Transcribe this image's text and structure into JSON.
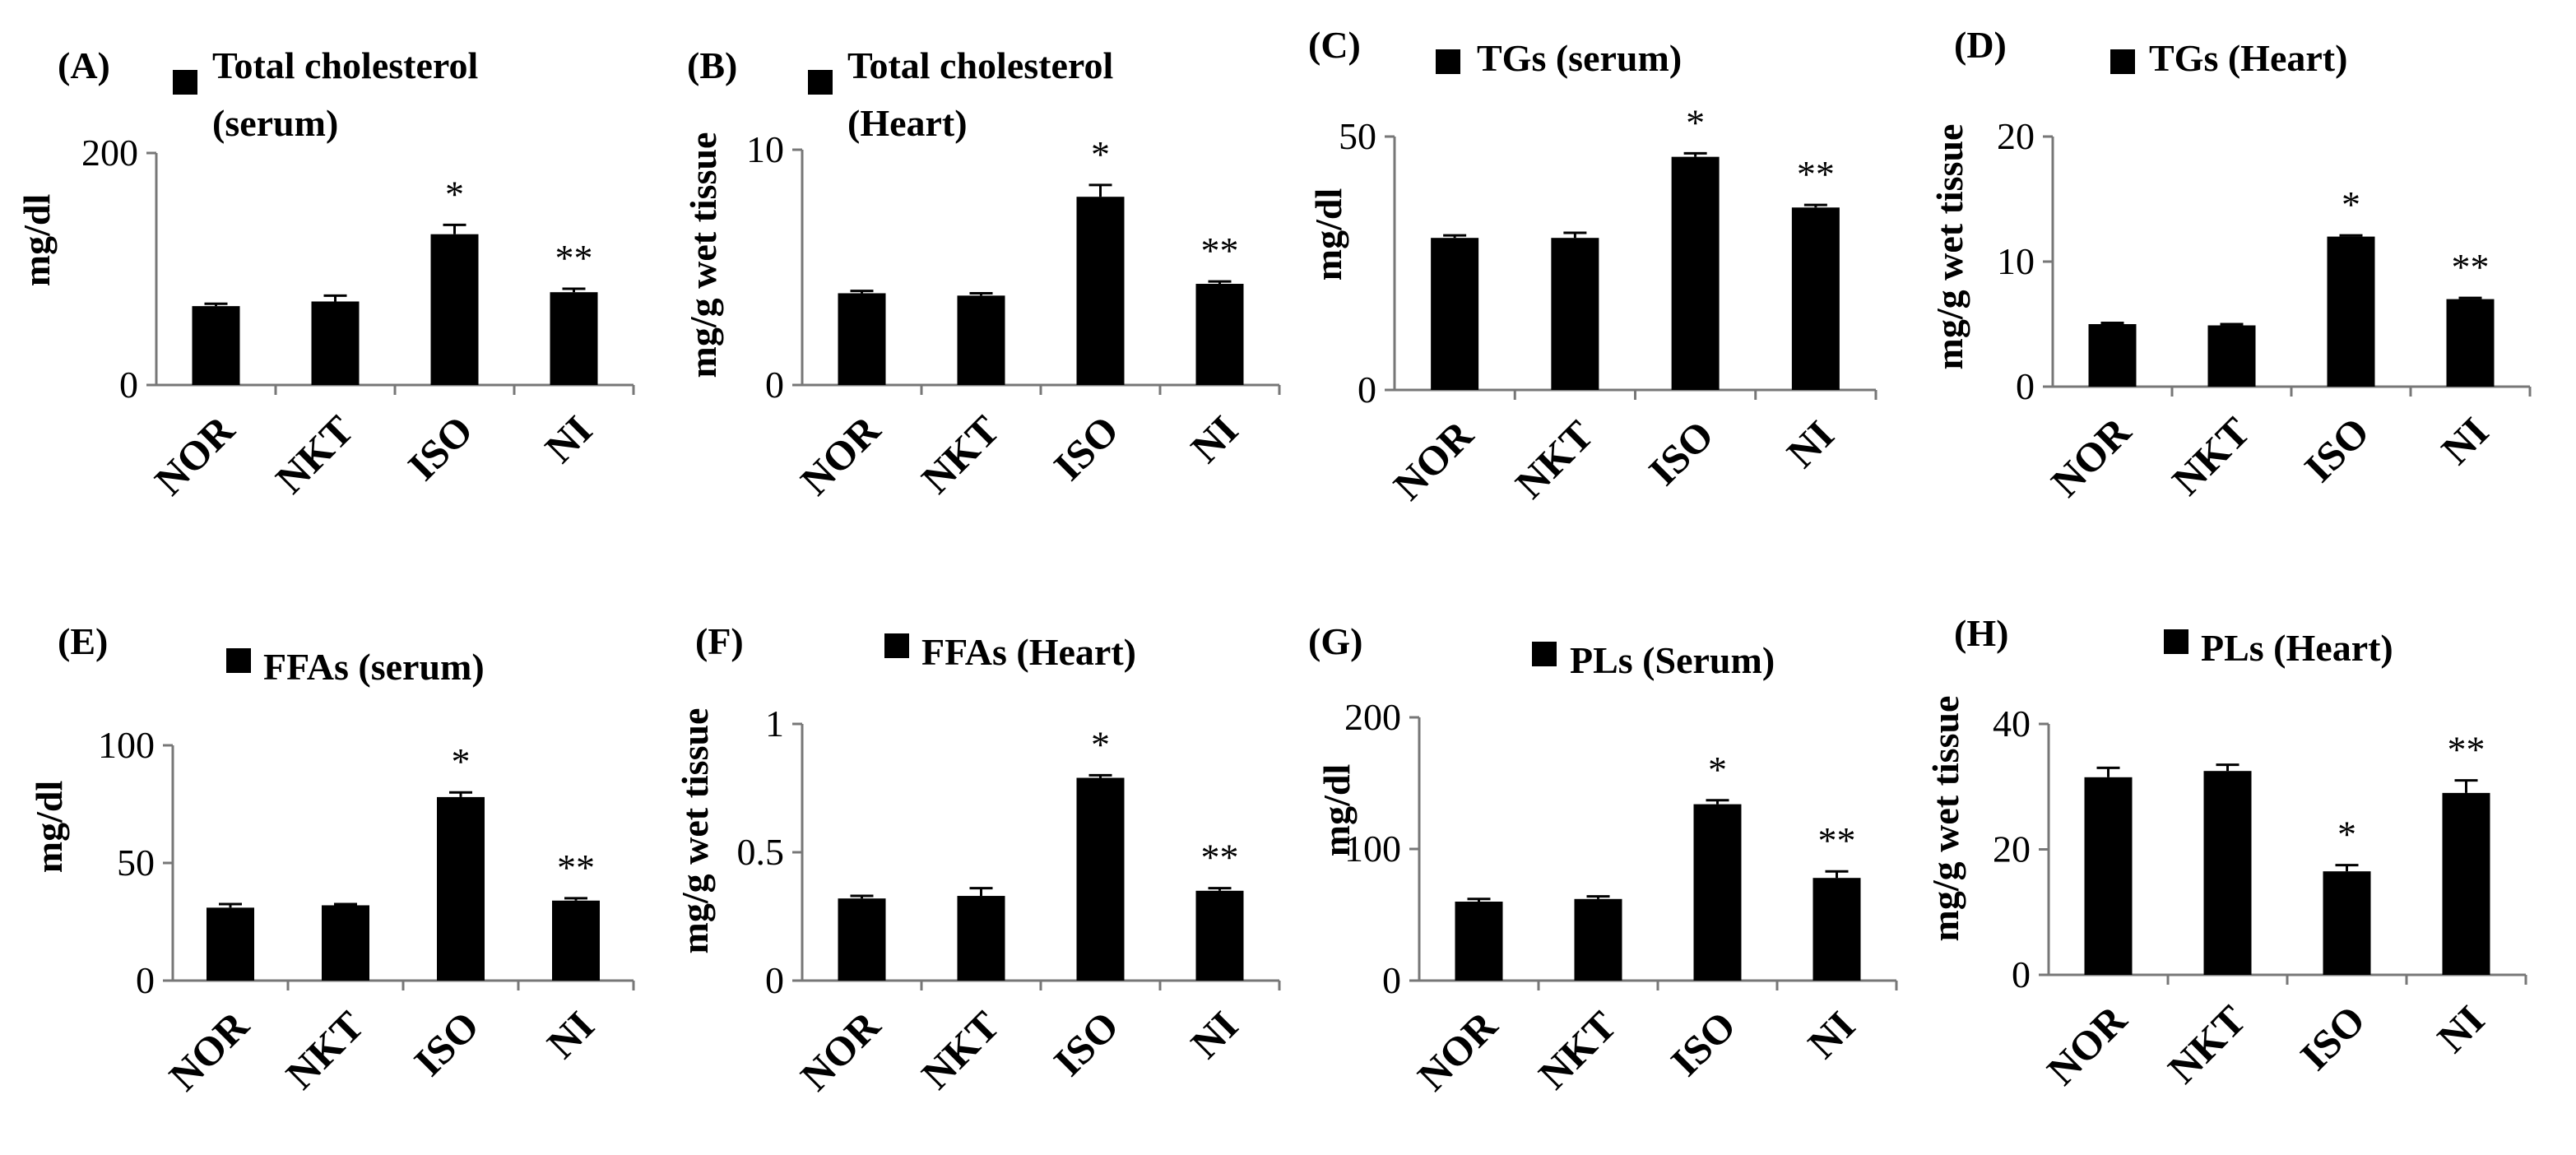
{
  "chart_data": [
    {
      "panel": "(A)",
      "type": "bar",
      "title": "Total cholesterol (serum)",
      "legend_lines": [
        "Total cholesterol",
        "(serum)"
      ],
      "ylabel": "mg/dl",
      "ylim": [
        0,
        200
      ],
      "yticks": [
        "0",
        "200"
      ],
      "categories": [
        "NOR",
        "NKT",
        "ISO",
        "NI"
      ],
      "values": [
        68,
        72,
        130,
        80
      ],
      "errors": [
        2,
        5,
        8,
        3
      ],
      "significance": [
        "",
        "",
        "*",
        "**"
      ]
    },
    {
      "panel": "(B)",
      "type": "bar",
      "title": "Total cholesterol (Heart)",
      "legend_lines": [
        "Total cholesterol",
        "(Heart)"
      ],
      "ylabel": "mg/g wet tissue",
      "ylim": [
        0,
        10
      ],
      "yticks": [
        "0",
        "10"
      ],
      "categories": [
        "NOR",
        "NKT",
        "ISO",
        "NI"
      ],
      "values": [
        3.9,
        3.8,
        8.0,
        4.3
      ],
      "errors": [
        0.1,
        0.1,
        0.5,
        0.1
      ],
      "significance": [
        "",
        "",
        "*",
        "**"
      ]
    },
    {
      "panel": "(C)",
      "type": "bar",
      "title": "TGs (serum)",
      "legend_lines": [
        "TGs (serum)"
      ],
      "ylabel": "mg/dl",
      "ylim": [
        0,
        50
      ],
      "yticks": [
        "0",
        "50"
      ],
      "categories": [
        "NOR",
        "NKT",
        "ISO",
        "NI"
      ],
      "values": [
        30,
        30,
        46,
        36
      ],
      "errors": [
        0.5,
        1,
        0.7,
        0.5
      ],
      "significance": [
        "",
        "",
        "*",
        "**"
      ]
    },
    {
      "panel": "(D)",
      "type": "bar",
      "title": "TGs (Heart)",
      "legend_lines": [
        "TGs (Heart)"
      ],
      "ylabel": "mg/g wet tissue",
      "ylim": [
        0,
        20
      ],
      "yticks": [
        "0",
        "10",
        "20"
      ],
      "categories": [
        "NOR",
        "NKT",
        "ISO",
        "NI"
      ],
      "values": [
        5,
        4.9,
        12,
        7
      ],
      "errors": [
        0.1,
        0.1,
        0.1,
        0.1
      ],
      "significance": [
        "",
        "",
        "*",
        "**"
      ]
    },
    {
      "panel": "(E)",
      "type": "bar",
      "title": "FFAs (serum)",
      "legend_lines": [
        "FFAs (serum)"
      ],
      "ylabel": "mg/dl",
      "ylim": [
        0,
        100
      ],
      "yticks": [
        "0",
        "50",
        "100"
      ],
      "categories": [
        "NOR",
        "NKT",
        "ISO",
        "NI"
      ],
      "values": [
        31,
        32,
        78,
        34
      ],
      "errors": [
        1.5,
        0.5,
        2,
        1
      ],
      "significance": [
        "",
        "",
        "*",
        "**"
      ]
    },
    {
      "panel": "(F)",
      "type": "bar",
      "title": "FFAs (Heart)",
      "legend_lines": [
        "FFAs (Heart)"
      ],
      "ylabel": "mg/g wet tissue",
      "ylim": [
        0,
        1
      ],
      "yticks": [
        "0",
        "0.5",
        "1"
      ],
      "categories": [
        "NOR",
        "NKT",
        "ISO",
        "NI"
      ],
      "values": [
        0.32,
        0.33,
        0.79,
        0.35
      ],
      "errors": [
        0.01,
        0.03,
        0.01,
        0.01
      ],
      "significance": [
        "",
        "",
        "*",
        "**"
      ]
    },
    {
      "panel": "(G)",
      "type": "bar",
      "title": "PLs (Serum)",
      "legend_lines": [
        "PLs (Serum)"
      ],
      "ylabel": "mg/dl",
      "ylim": [
        0,
        200
      ],
      "yticks": [
        "0",
        "100",
        "200"
      ],
      "categories": [
        "NOR",
        "NKT",
        "ISO",
        "NI"
      ],
      "values": [
        60,
        62,
        134,
        78
      ],
      "errors": [
        2,
        2,
        3,
        5
      ],
      "significance": [
        "",
        "",
        "*",
        "**"
      ]
    },
    {
      "panel": "(H)",
      "type": "bar",
      "title": "PLs (Heart)",
      "legend_lines": [
        "PLs (Heart)"
      ],
      "ylabel": "mg/g wet tissue",
      "ylim": [
        0,
        40
      ],
      "yticks": [
        "0",
        "20",
        "40"
      ],
      "categories": [
        "NOR",
        "NKT",
        "ISO",
        "NI"
      ],
      "values": [
        31.5,
        32.5,
        16.5,
        29
      ],
      "errors": [
        1.5,
        1,
        1,
        2
      ],
      "significance": [
        "",
        "",
        "*",
        "**"
      ]
    }
  ]
}
